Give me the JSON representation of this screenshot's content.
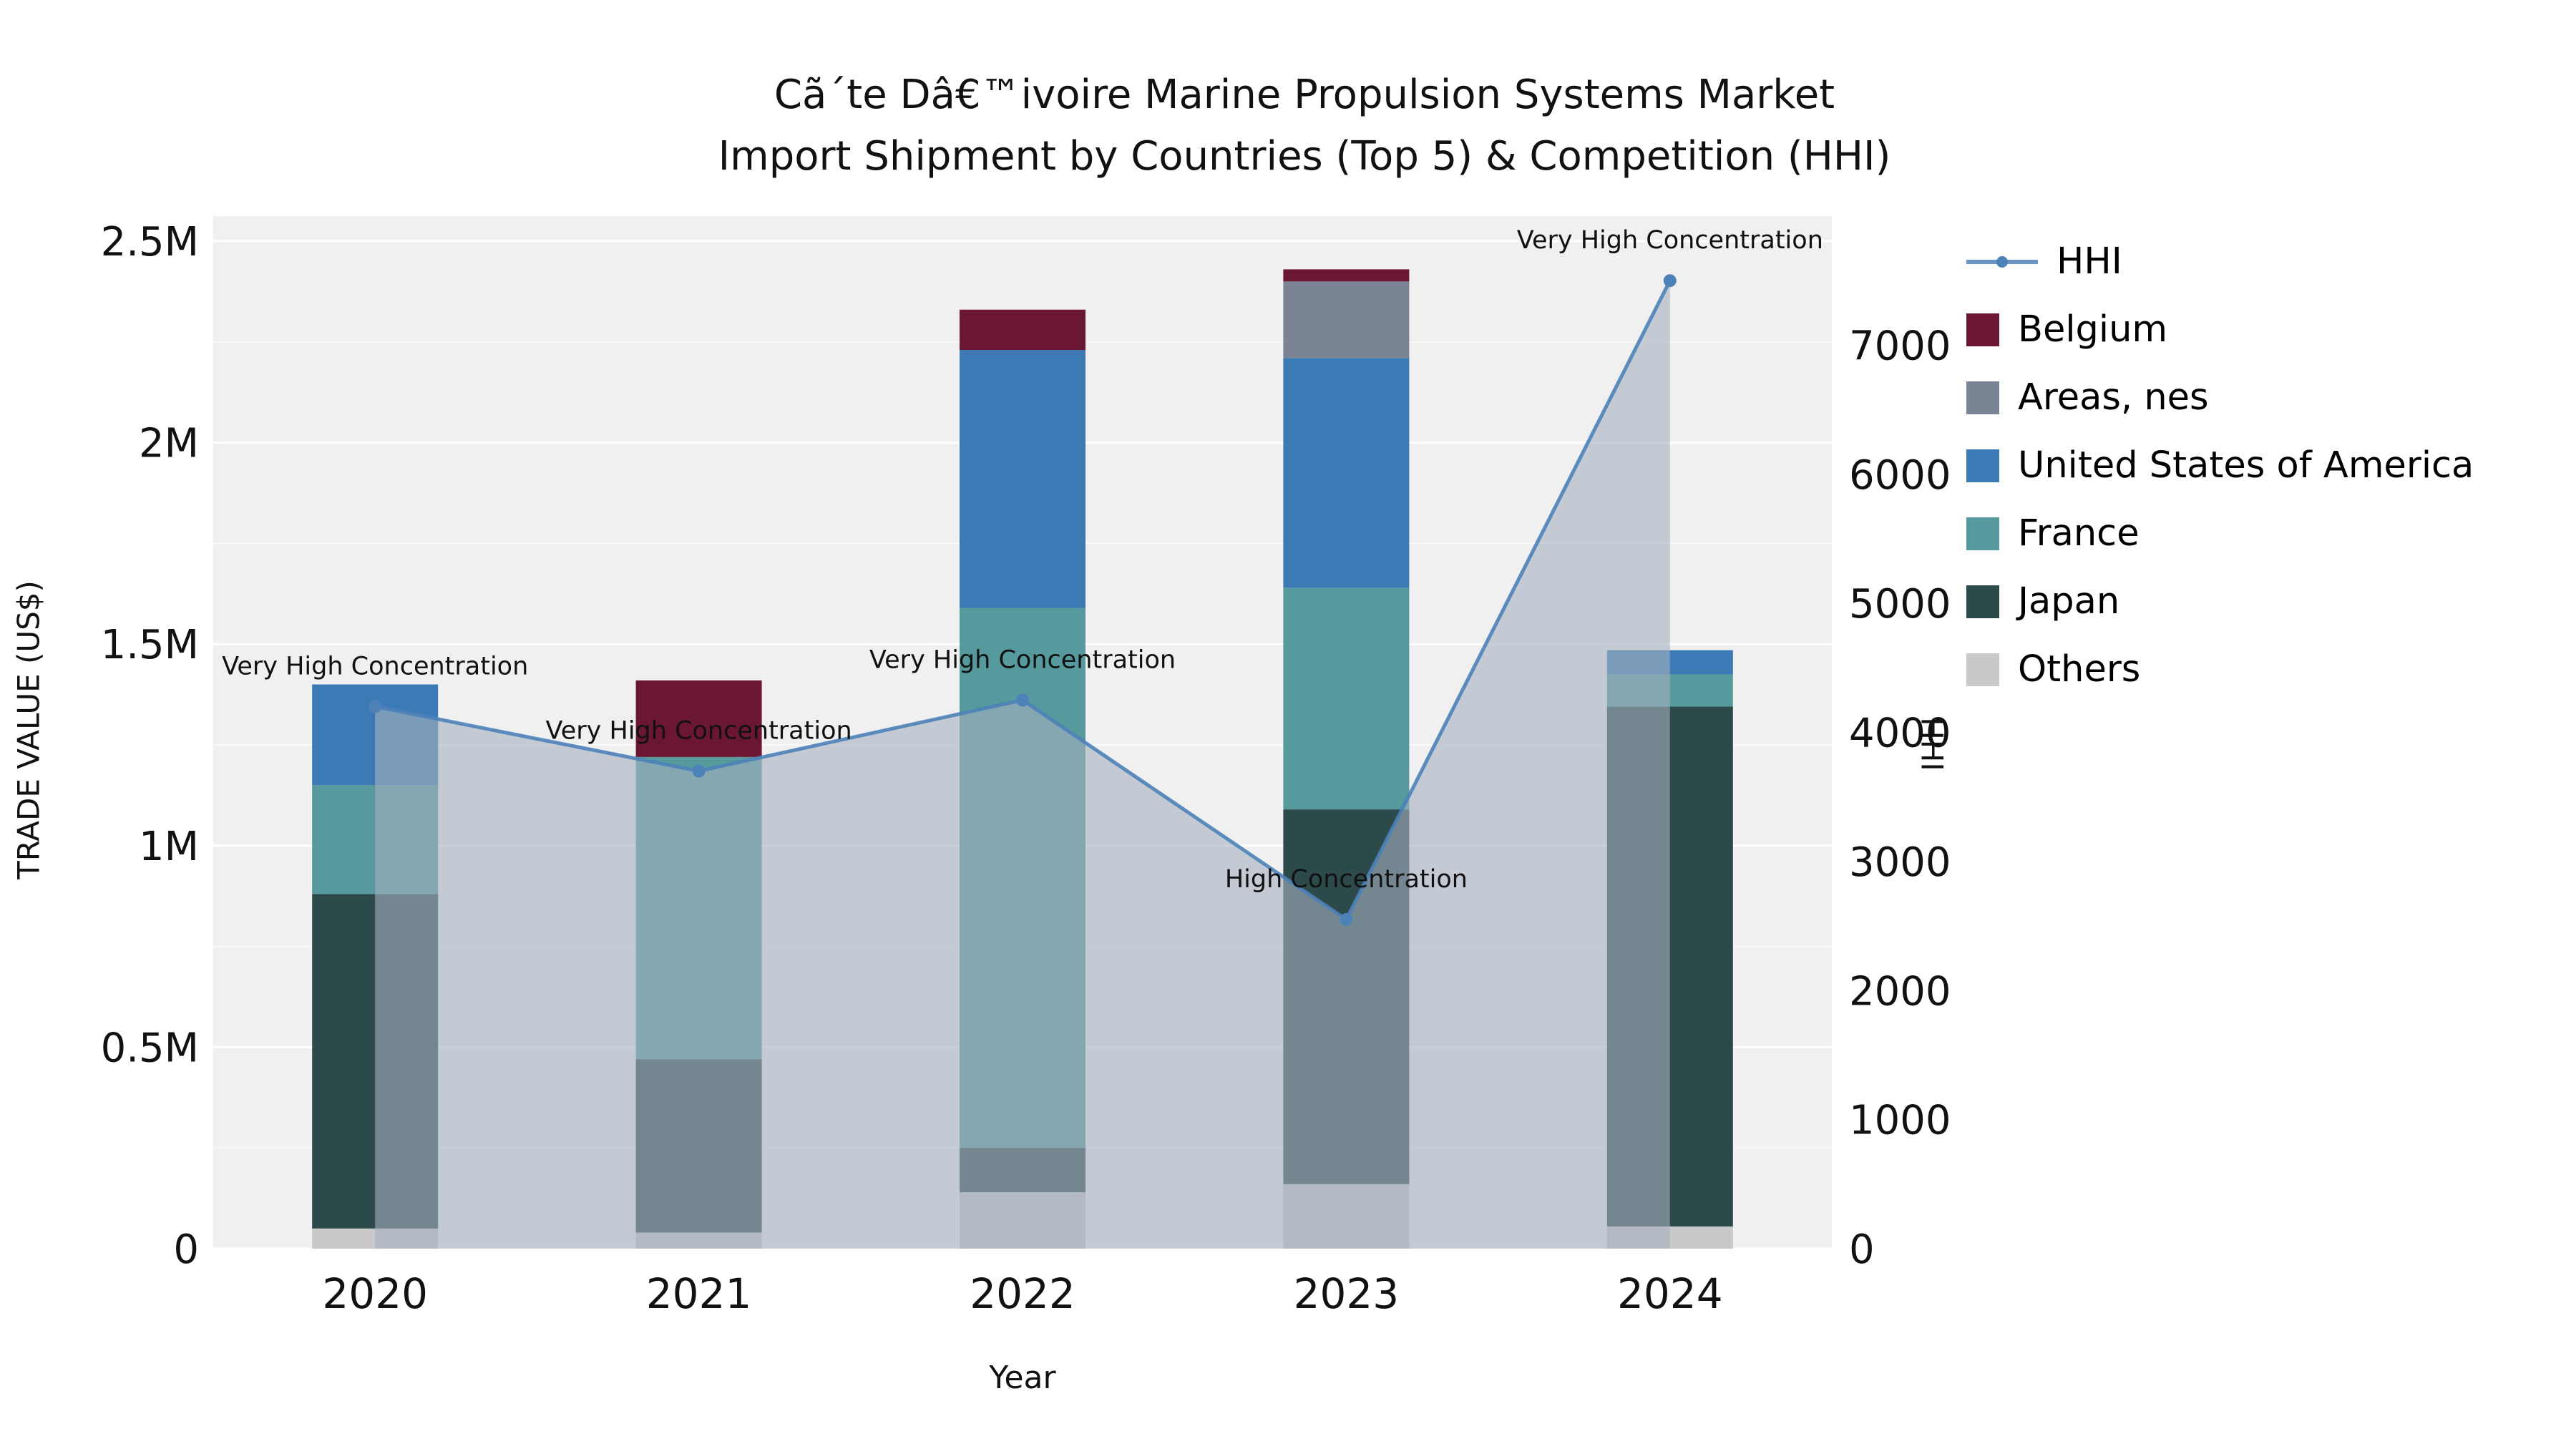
{
  "title": {
    "line1": "Cã´te Dâ€™ivoire Marine Propulsion Systems Market",
    "line2": "Import Shipment by Countries (Top 5) & Competition (HHI)"
  },
  "axes": {
    "y_left_label": "TRADE VALUE (US$)",
    "y_right_label": "HHI",
    "x_label": "Year",
    "y_left_ticks": [
      "0",
      "0.5M",
      "1M",
      "1.5M",
      "2M",
      "2.5M"
    ],
    "y_right_ticks": [
      "0",
      "1000",
      "2000",
      "3000",
      "4000",
      "5000",
      "6000",
      "7000"
    ]
  },
  "legend": [
    {
      "label": "HHI",
      "type": "line",
      "color": "#4d82b8"
    },
    {
      "label": "Belgium",
      "type": "swatch",
      "color": "#6b1733"
    },
    {
      "label": "Areas, nes",
      "type": "swatch",
      "color": "#7b8494"
    },
    {
      "label": "United States of America",
      "type": "swatch",
      "color": "#3c7ab5"
    },
    {
      "label": "France",
      "type": "swatch",
      "color": "#569a9e"
    },
    {
      "label": "Japan",
      "type": "swatch",
      "color": "#2c4a4a"
    },
    {
      "label": "Others",
      "type": "swatch",
      "color": "#c9c9c9"
    }
  ],
  "chart_data": {
    "type": "bar",
    "stacked": true,
    "title": "Cã´te Dâ€™ivoire Marine Propulsion Systems Market Import Shipment by Countries (Top 5) & Competition (HHI)",
    "xlabel": "Year",
    "ylabel_left": "TRADE VALUE (US$)",
    "ylabel_right": "HHI",
    "categories": [
      "2020",
      "2021",
      "2022",
      "2023",
      "2024"
    ],
    "series": [
      {
        "name": "Others",
        "color": "#c9c9c9",
        "values": [
          50000,
          40000,
          140000,
          160000,
          55000
        ]
      },
      {
        "name": "Japan",
        "color": "#2c4a4a",
        "values": [
          830000,
          430000,
          110000,
          930000,
          1290000
        ]
      },
      {
        "name": "France",
        "color": "#569a9e",
        "values": [
          270000,
          750000,
          1340000,
          550000,
          80000
        ]
      },
      {
        "name": "United States of America",
        "color": "#3c7ab5",
        "values": [
          250000,
          0,
          640000,
          570000,
          60000
        ]
      },
      {
        "name": "Areas, nes",
        "color": "#7b8494",
        "values": [
          0,
          0,
          0,
          190000,
          0
        ]
      },
      {
        "name": "Belgium",
        "color": "#6b1733",
        "values": [
          0,
          190000,
          100000,
          30000,
          0
        ]
      }
    ],
    "hhi": {
      "name": "HHI",
      "color": "#4d82b8",
      "fill_color": "rgba(165,177,192,0.6)",
      "values": [
        4200,
        3700,
        4250,
        2550,
        7500
      ]
    },
    "annotations": [
      "Very High Concentration",
      "Very High Concentration",
      "Very High Concentration",
      "High Concentration",
      "Very High Concentration"
    ],
    "ylim_left": [
      0,
      2500000
    ],
    "ylim_right": [
      0,
      8000
    ],
    "grid": true,
    "legend_position": "right"
  }
}
